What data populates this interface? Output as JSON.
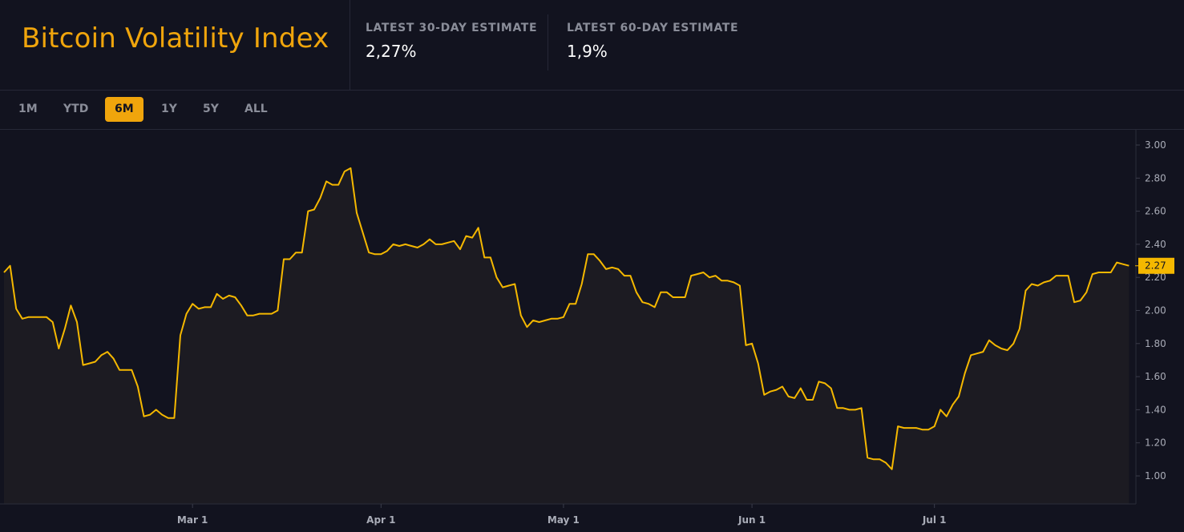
{
  "header": {
    "title": "Bitcoin Volatility Index",
    "stats": [
      {
        "label": "LATEST 30-DAY ESTIMATE",
        "value": "2,27%"
      },
      {
        "label": "LATEST 60-DAY ESTIMATE",
        "value": "1,9%"
      }
    ]
  },
  "ranges": [
    {
      "label": "1M",
      "active": false
    },
    {
      "label": "YTD",
      "active": false
    },
    {
      "label": "6M",
      "active": true
    },
    {
      "label": "1Y",
      "active": false
    },
    {
      "label": "5Y",
      "active": false
    },
    {
      "label": "ALL",
      "active": false
    }
  ],
  "colors": {
    "accent": "#f0a50c",
    "line": "#f5b800",
    "background": "#12131f",
    "area": "#1c1b22",
    "axis_text": "#a9acb7"
  },
  "chart_data": {
    "type": "area",
    "y_ticks": [
      "3.00",
      "2.80",
      "2.60",
      "2.40",
      "2.20",
      "2.00",
      "1.80",
      "1.60",
      "1.40",
      "1.20",
      "1.00"
    ],
    "ylim": [
      0.83,
      3.08
    ],
    "x_ticks": [
      "Mar 1",
      "Apr 1",
      "May 1",
      "Jun 1",
      "Jul 1"
    ],
    "x_tick_days": [
      46,
      77,
      107,
      138,
      168
    ],
    "xlim": [
      15,
      201
    ],
    "last_value_label": "2.27",
    "last_value": 2.27,
    "grid": false,
    "series": [
      {
        "values": [
          2.23,
          2.27,
          2.01,
          1.95,
          1.96,
          1.96,
          1.96,
          1.96,
          1.93,
          1.77,
          1.89,
          2.03,
          1.93,
          1.67,
          1.68,
          1.69,
          1.73,
          1.75,
          1.71,
          1.64,
          1.64,
          1.64,
          1.54,
          1.36,
          1.37,
          1.4,
          1.37,
          1.35,
          1.35,
          1.85,
          1.98,
          2.04,
          2.01,
          2.02,
          2.02,
          2.1,
          2.07,
          2.09,
          2.08,
          2.03,
          1.97,
          1.97,
          1.98,
          1.98,
          1.98,
          2.0,
          2.31,
          2.31,
          2.35,
          2.35,
          2.6,
          2.61,
          2.68,
          2.78,
          2.76,
          2.76,
          2.84,
          2.86,
          2.59,
          2.47,
          2.35,
          2.34,
          2.34,
          2.36,
          2.4,
          2.39,
          2.4,
          2.39,
          2.38,
          2.4,
          2.43,
          2.4,
          2.4,
          2.41,
          2.42,
          2.37,
          2.45,
          2.44,
          2.5,
          2.32,
          2.32,
          2.2,
          2.14,
          2.15,
          2.16,
          1.97,
          1.9,
          1.94,
          1.93,
          1.94,
          1.95,
          1.95,
          1.96,
          2.04,
          2.04,
          2.16,
          2.34,
          2.34,
          2.3,
          2.25,
          2.26,
          2.25,
          2.21,
          2.21,
          2.11,
          2.05,
          2.04,
          2.02,
          2.11,
          2.11,
          2.08,
          2.08,
          2.08,
          2.21,
          2.22,
          2.23,
          2.2,
          2.21,
          2.18,
          2.18,
          2.17,
          2.15,
          1.79,
          1.8,
          1.68,
          1.49,
          1.51,
          1.52,
          1.54,
          1.48,
          1.47,
          1.53,
          1.46,
          1.46,
          1.57,
          1.56,
          1.53,
          1.41,
          1.41,
          1.4,
          1.4,
          1.41,
          1.11,
          1.1,
          1.1,
          1.08,
          1.04,
          1.3,
          1.29,
          1.29,
          1.29,
          1.28,
          1.28,
          1.3,
          1.4,
          1.36,
          1.43,
          1.48,
          1.62,
          1.73,
          1.74,
          1.75,
          1.82,
          1.79,
          1.77,
          1.76,
          1.8,
          1.89,
          2.12,
          2.16,
          2.15,
          2.17,
          2.18,
          2.21,
          2.21,
          2.21,
          2.05,
          2.06,
          2.11,
          2.22,
          2.23,
          2.23,
          2.23,
          2.29,
          2.28,
          2.27
        ],
        "x_start_day": 15
      }
    ]
  }
}
